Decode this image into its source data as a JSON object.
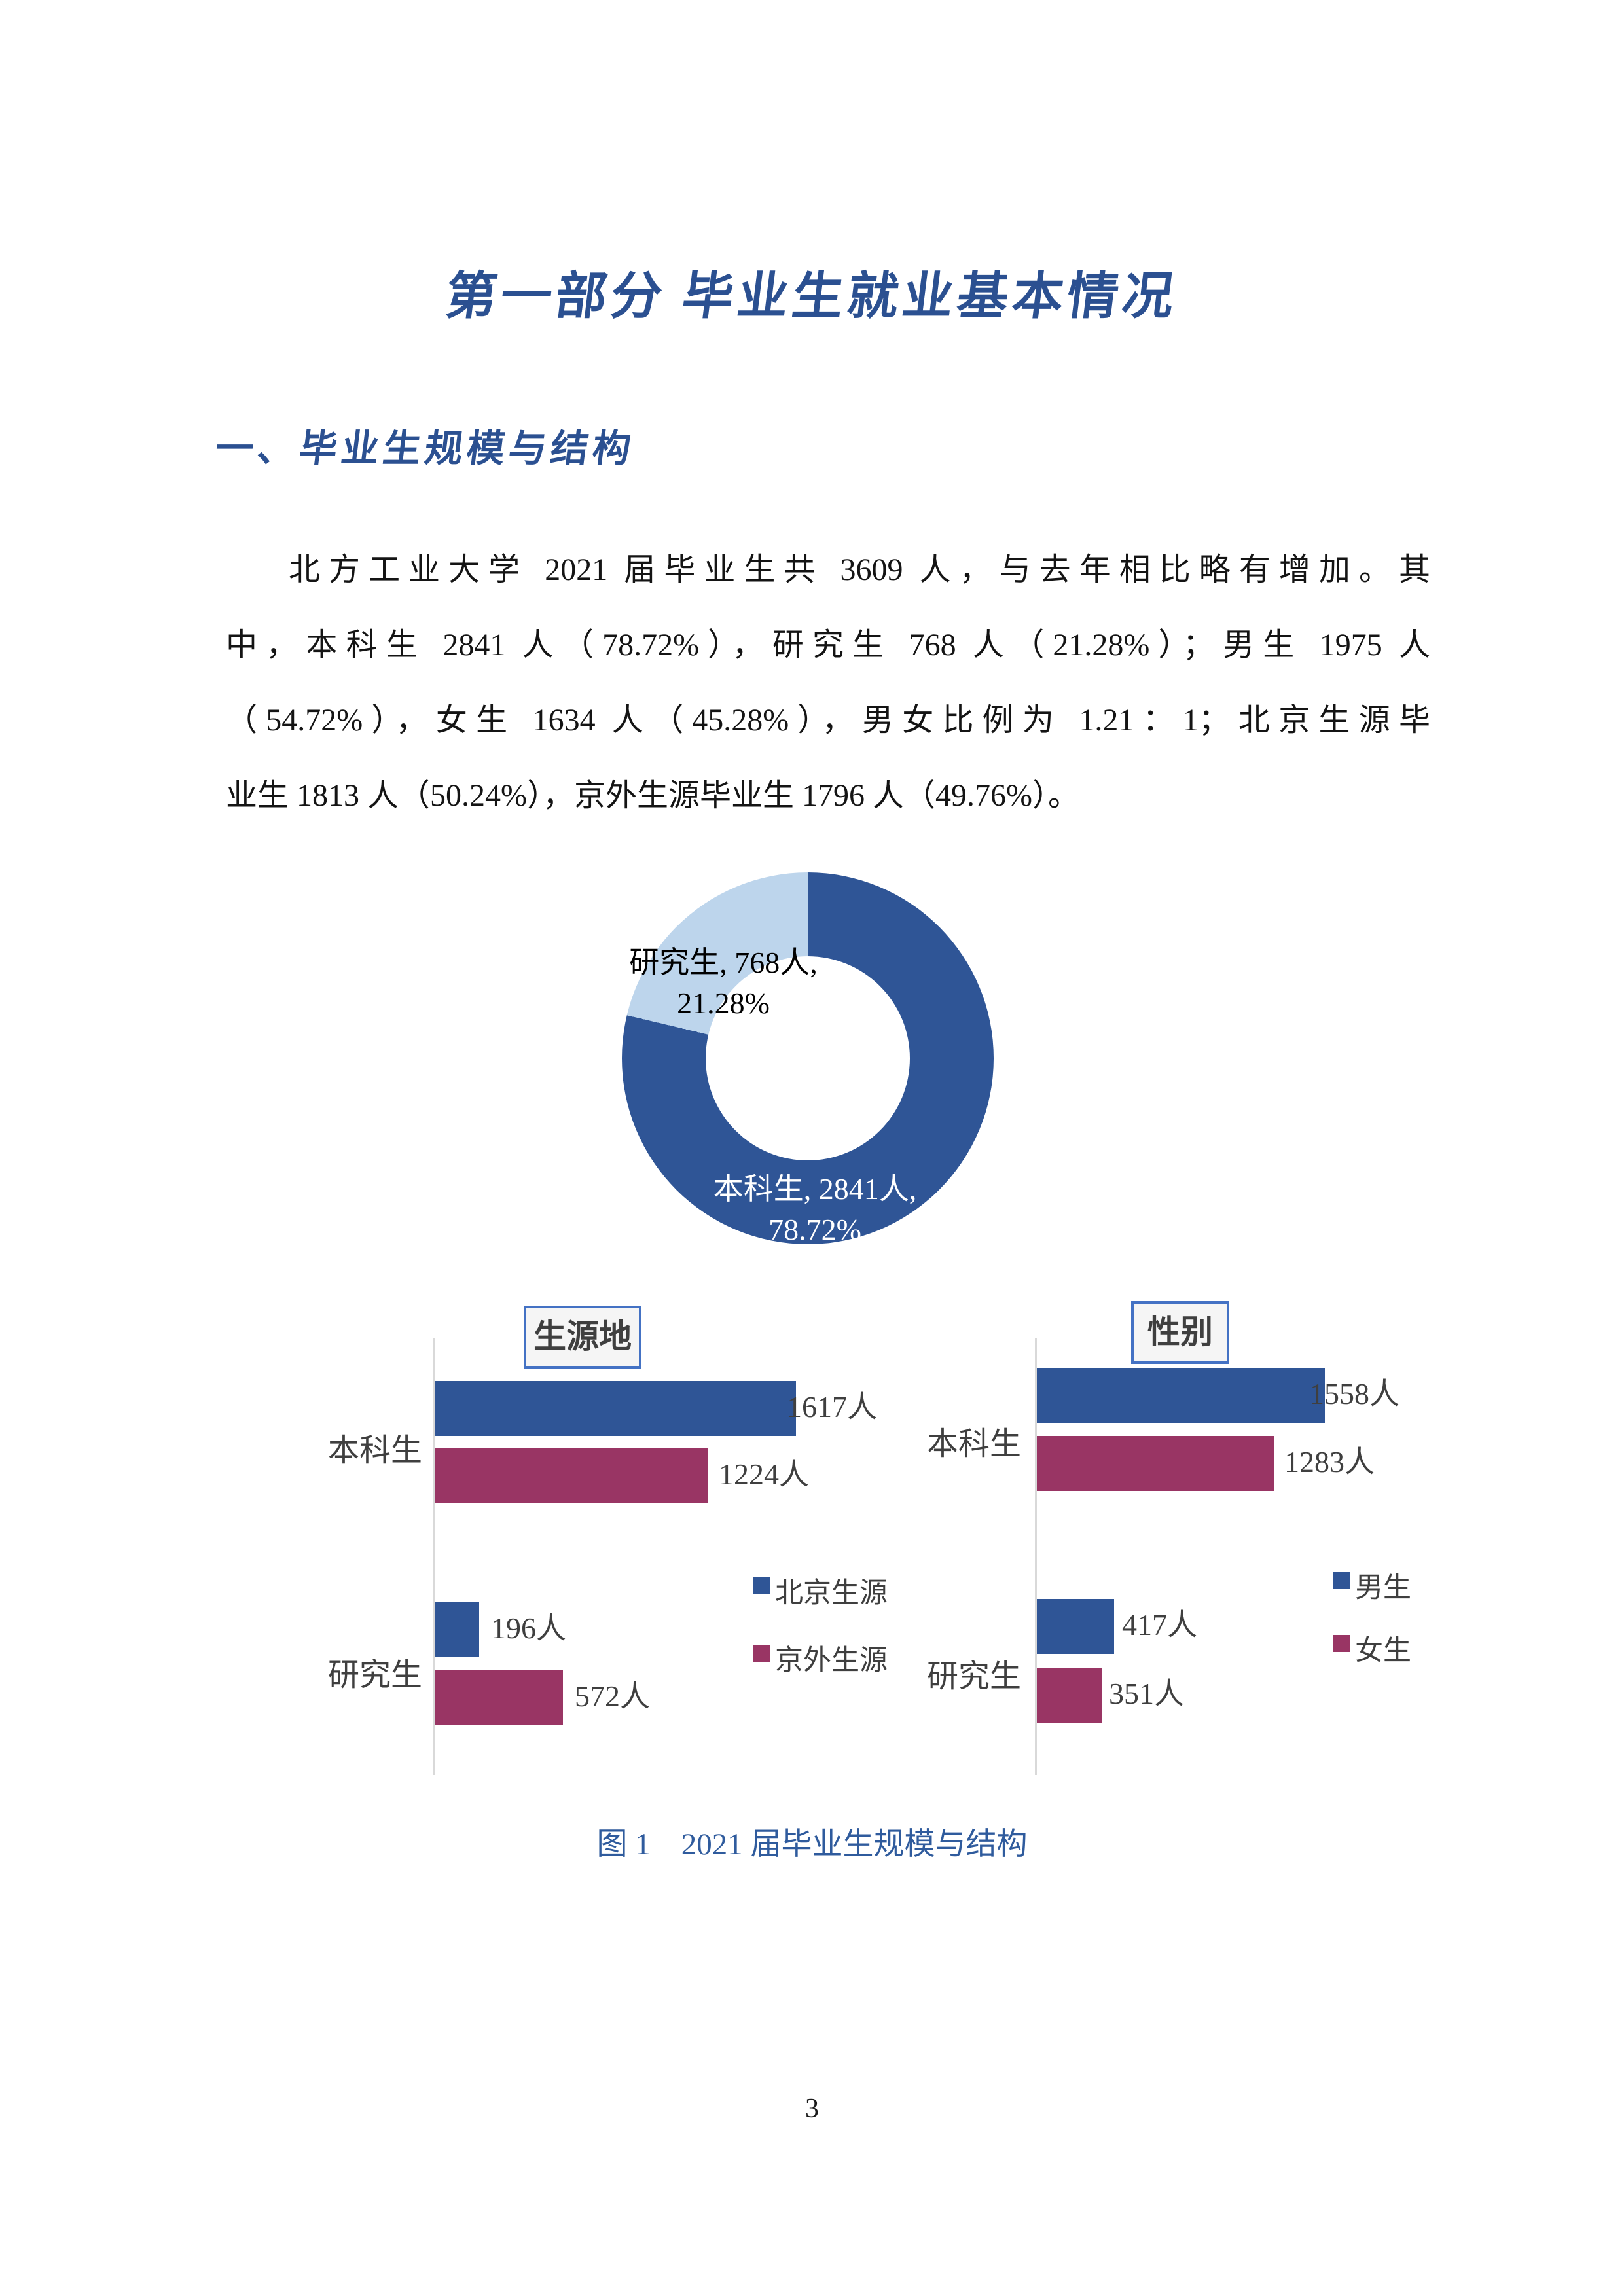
{
  "title": "第一部分 毕业生就业基本情况",
  "section_heading": "一、毕业生规模与结构",
  "paragraph": {
    "lines": [
      "北方工业大学 2021 届毕业生共 3609 人，与去年相比略有增加。其",
      "中，本科生 2841 人（78.72%），研究生 768 人（21.28%）；男生 1975 人",
      "（54.72%），女生 1634 人（45.28%），男女比例为 1.21：1；北京生源毕",
      "业生 1813 人（50.24%），京外生源毕业生 1796 人（49.76%）。"
    ]
  },
  "figure": {
    "caption": "图 1　2021 届毕业生规模与结构",
    "donut": {
      "grad_label_line1": "研究生, 768人,",
      "grad_label_line2": "21.28%",
      "ug_label_line1": "本科生, 2841人,",
      "ug_label_line2": "78.72%"
    },
    "left_chart": {
      "title": "生源地",
      "categories": [
        "本科生",
        "研究生"
      ],
      "bar_labels": [
        "1617人",
        "1224人",
        "196人",
        "572人"
      ],
      "legend": [
        "北京生源",
        "京外生源"
      ]
    },
    "right_chart": {
      "title": "性别",
      "categories": [
        "本科生",
        "研究生"
      ],
      "bar_labels": [
        "1558人",
        "1283人",
        "417人",
        "351人"
      ],
      "legend": [
        "男生",
        "女生"
      ]
    }
  },
  "page": {
    "number": "3"
  },
  "colors": {
    "heading_blue": "#2B5091",
    "caption_blue": "#2F5B9D",
    "bar_blue": "#2F5596",
    "bar_crimson": "#993564",
    "donut_light_blue": "#BDD5EC",
    "chart_text": "#3F3F3F",
    "axis_gray": "#D9D9D9",
    "title_box_border": "#4472C4"
  },
  "chart_data": [
    {
      "type": "pie",
      "subtype": "donut",
      "labels": [
        "本科生",
        "研究生"
      ],
      "values": [
        2841,
        768
      ],
      "percents": [
        78.72,
        21.28
      ],
      "value_suffix": "人",
      "colors": [
        "#2F5596",
        "#BDD5EC"
      ],
      "start_angle_deg": 0,
      "direction": "clockwise",
      "hole_ratio": 0.55,
      "legend_position": "none"
    },
    {
      "type": "bar",
      "orientation": "horizontal",
      "title": "生源地",
      "categories": [
        "本科生",
        "研究生"
      ],
      "series": [
        {
          "name": "北京生源",
          "values": [
            1617,
            196
          ],
          "color": "#2F5596"
        },
        {
          "name": "京外生源",
          "values": [
            1224,
            572
          ],
          "color": "#993564"
        }
      ],
      "value_suffix": "人",
      "data_labels": true,
      "legend_position": "right"
    },
    {
      "type": "bar",
      "orientation": "horizontal",
      "title": "性别",
      "categories": [
        "本科生",
        "研究生"
      ],
      "series": [
        {
          "name": "男生",
          "values": [
            1558,
            417
          ],
          "color": "#2F5596"
        },
        {
          "name": "女生",
          "values": [
            1283,
            351
          ],
          "color": "#993564"
        }
      ],
      "value_suffix": "人",
      "data_labels": true,
      "legend_position": "right"
    }
  ]
}
